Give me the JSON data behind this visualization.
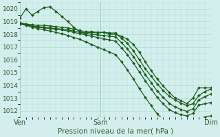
{
  "xlabel": "Pression niveau de la mer( hPa )",
  "ylim": [
    1011.5,
    1020.5
  ],
  "yticks": [
    1012,
    1013,
    1014,
    1015,
    1016,
    1017,
    1018,
    1019,
    1020
  ],
  "xtick_labels": [
    "Ven",
    "Sam",
    "Dim"
  ],
  "bg_color": "#d4eeee",
  "grid_color": "#aaddcc",
  "line_color": "#1a5c1a",
  "series": [
    {
      "x": [
        0,
        1,
        2,
        3,
        4,
        5,
        6,
        7,
        8,
        9,
        10,
        11,
        12,
        13,
        14,
        15,
        16,
        17,
        18,
        19,
        20,
        21,
        22,
        23,
        24,
        25,
        26,
        27,
        28,
        29,
        30,
        31,
        32
      ],
      "y": [
        1019.3,
        1020.0,
        1019.5,
        1019.8,
        1020.1,
        1020.15,
        1019.8,
        1019.4,
        1019.0,
        1018.55,
        1018.2,
        1018.1,
        1018.15,
        1018.1,
        1018.15,
        1018.0,
        1018.0,
        1017.85,
        1017.6,
        1017.2,
        1016.6,
        1015.85,
        1015.15,
        1014.5,
        1013.95,
        1013.45,
        1013.0,
        1012.8,
        1012.55,
        1013.0,
        1013.8,
        1013.8,
        1013.8
      ]
    },
    {
      "x": [
        0,
        1,
        2,
        3,
        4,
        5,
        6,
        7,
        8,
        9,
        10,
        11,
        12,
        13,
        14,
        15,
        16,
        17,
        18,
        19,
        20,
        21,
        22,
        23,
        24,
        25,
        26,
        27,
        28,
        29,
        30,
        31,
        32
      ],
      "y": [
        1018.9,
        1018.8,
        1018.75,
        1018.7,
        1018.7,
        1018.65,
        1018.6,
        1018.55,
        1018.5,
        1018.4,
        1018.3,
        1018.2,
        1018.2,
        1018.15,
        1018.15,
        1018.1,
        1018.1,
        1017.7,
        1017.3,
        1016.7,
        1016.0,
        1015.3,
        1014.7,
        1014.1,
        1013.6,
        1013.15,
        1012.85,
        1012.6,
        1012.4,
        1012.55,
        1013.2,
        1013.5,
        1013.7
      ]
    },
    {
      "x": [
        0,
        1,
        2,
        3,
        4,
        5,
        6,
        7,
        8,
        9,
        10,
        11,
        12,
        13,
        14,
        15,
        16,
        17,
        18,
        19,
        20,
        21,
        22,
        23,
        24,
        25,
        26,
        27,
        28,
        29,
        30,
        31,
        32
      ],
      "y": [
        1018.85,
        1018.75,
        1018.65,
        1018.6,
        1018.55,
        1018.5,
        1018.45,
        1018.4,
        1018.35,
        1018.25,
        1018.15,
        1018.05,
        1018.0,
        1017.95,
        1017.9,
        1017.85,
        1017.8,
        1017.35,
        1016.85,
        1016.25,
        1015.55,
        1014.85,
        1014.2,
        1013.55,
        1013.05,
        1012.6,
        1012.3,
        1012.1,
        1011.95,
        1012.15,
        1012.85,
        1013.1,
        1013.3
      ]
    },
    {
      "x": [
        0,
        1,
        2,
        3,
        4,
        5,
        6,
        7,
        8,
        9,
        10,
        11,
        12,
        13,
        14,
        15,
        16,
        17,
        18,
        19,
        20,
        21,
        22,
        23,
        24,
        25,
        26,
        27,
        28,
        29,
        30,
        31,
        32
      ],
      "y": [
        1018.85,
        1018.75,
        1018.65,
        1018.55,
        1018.5,
        1018.45,
        1018.4,
        1018.35,
        1018.25,
        1018.15,
        1018.05,
        1017.95,
        1017.85,
        1017.75,
        1017.65,
        1017.55,
        1017.45,
        1016.95,
        1016.4,
        1015.75,
        1015.05,
        1014.35,
        1013.7,
        1013.05,
        1012.55,
        1012.1,
        1011.85,
        1011.7,
        1011.6,
        1011.8,
        1012.45,
        1012.55,
        1012.65
      ]
    },
    {
      "x": [
        0,
        1,
        2,
        3,
        4,
        5,
        6,
        7,
        8,
        9,
        10,
        11,
        12,
        13,
        14,
        15,
        16,
        17,
        18,
        19,
        20,
        21,
        22,
        23,
        24,
        25,
        26,
        27,
        28,
        29,
        30,
        31,
        32
      ],
      "y": [
        1018.8,
        1018.7,
        1018.55,
        1018.45,
        1018.35,
        1018.25,
        1018.15,
        1018.05,
        1017.9,
        1017.75,
        1017.6,
        1017.4,
        1017.2,
        1017.0,
        1016.8,
        1016.6,
        1016.4,
        1015.85,
        1015.2,
        1014.5,
        1013.75,
        1013.05,
        1012.4,
        1011.75,
        1011.3,
        1010.9,
        1010.7,
        1010.6,
        1010.55,
        1010.75,
        1011.4,
        1011.5,
        1011.6
      ]
    }
  ],
  "vline_positions": [
    0,
    13.5,
    32
  ],
  "marker": "D",
  "markersize": 2.0,
  "linewidth": 0.9
}
